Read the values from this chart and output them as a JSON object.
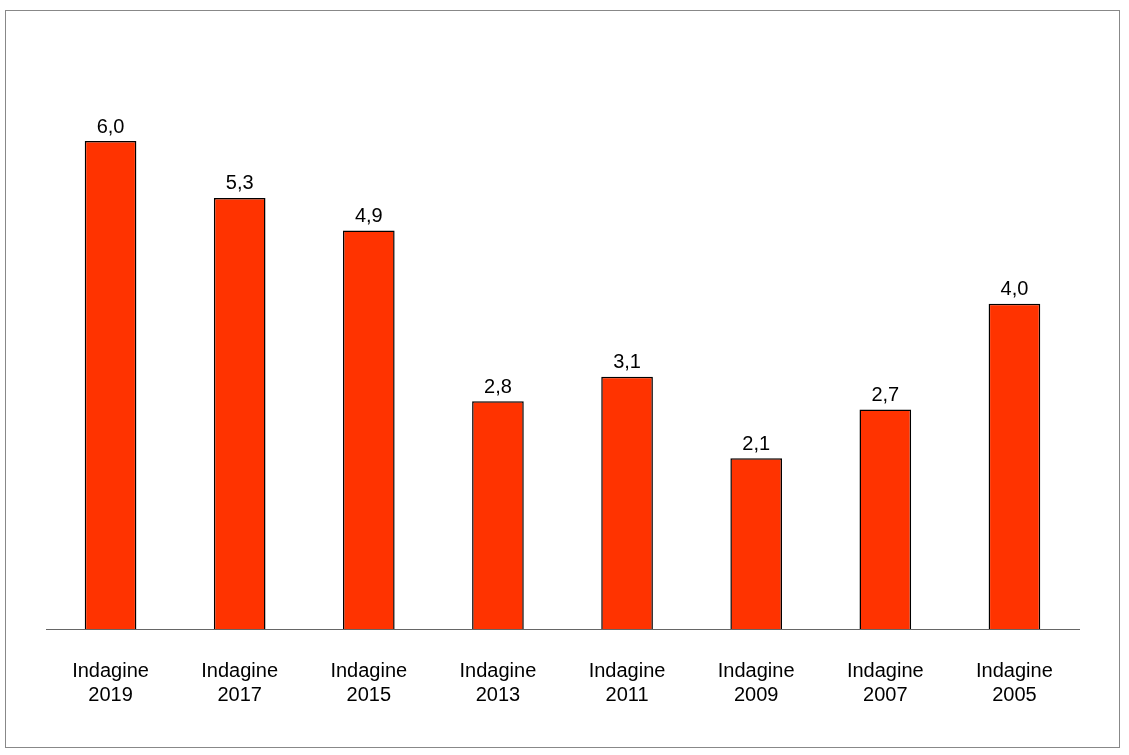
{
  "chart_data": {
    "type": "bar",
    "categories": [
      "Indagine 2019",
      "Indagine 2017",
      "Indagine 2015",
      "Indagine 2013",
      "Indagine 2011",
      "Indagine 2009",
      "Indagine 2007",
      "Indagine 2005"
    ],
    "values": [
      6.0,
      5.3,
      4.9,
      2.8,
      3.1,
      2.1,
      2.7,
      4.0
    ],
    "value_labels": [
      "6,0",
      "5,3",
      "4,9",
      "2,8",
      "3,1",
      "2,1",
      "2,7",
      "4,0"
    ],
    "color": "#ff3300",
    "grid": false,
    "legend": false,
    "tick_labels": "x"
  }
}
